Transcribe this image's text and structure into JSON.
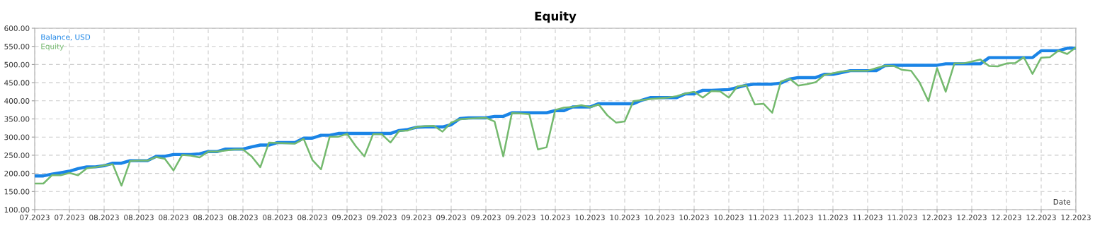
{
  "chart_data": {
    "type": "line",
    "title": "Equity",
    "xlabel": "Date",
    "categories": [
      "07.2023",
      null,
      null,
      null,
      "07.2023",
      null,
      null,
      null,
      "08.2023",
      null,
      null,
      null,
      "08.2023",
      null,
      null,
      null,
      "08.2023",
      null,
      null,
      null,
      "08.2023",
      null,
      null,
      null,
      "08.2023",
      null,
      null,
      null,
      "08.2023",
      null,
      null,
      null,
      "08.2023",
      null,
      null,
      null,
      "09.2023",
      null,
      null,
      null,
      "09.2023",
      null,
      null,
      null,
      "09.2023",
      null,
      null,
      null,
      "09.2023",
      null,
      null,
      null,
      "09.2023",
      null,
      null,
      null,
      "09.2023",
      null,
      null,
      null,
      "10.2023",
      null,
      null,
      null,
      "10.2023",
      null,
      null,
      null,
      "10.2023",
      null,
      null,
      null,
      "10.2023",
      null,
      null,
      null,
      "10.2023",
      null,
      null,
      null,
      "10.2023",
      null,
      null,
      null,
      "11.2023",
      null,
      null,
      null,
      "11.2023",
      null,
      null,
      null,
      "11.2023",
      null,
      null,
      null,
      "11.2023",
      null,
      null,
      null,
      "11.2023",
      null,
      null,
      null,
      "12.2023",
      null,
      null,
      null,
      "12.2023",
      null,
      null,
      null,
      "12.2023",
      null,
      null,
      null,
      "12.2023",
      null,
      null,
      null,
      "12.2023"
    ],
    "ylim": [
      100,
      600
    ],
    "yticks": [
      {
        "value": 100,
        "label": "100.00"
      },
      {
        "value": 150,
        "label": "150.00"
      },
      {
        "value": 200,
        "label": "200.00"
      },
      {
        "value": 250,
        "label": "250.00"
      },
      {
        "value": 300,
        "label": "300.00"
      },
      {
        "value": 350,
        "label": "350.00"
      },
      {
        "value": 400,
        "label": "400.00"
      },
      {
        "value": 450,
        "label": "450.00"
      },
      {
        "value": 500,
        "label": "500.00"
      },
      {
        "value": 550,
        "label": "550.00"
      },
      {
        "value": 600,
        "label": "600.00"
      }
    ],
    "grid": true,
    "legend": "top left",
    "marker": "none",
    "line_style": "solid",
    "series": [
      {
        "name": "Balance, USD",
        "color": "#1a84e6",
        "values": [
          193,
          193,
          198,
          202,
          206,
          213,
          218,
          218,
          221,
          228,
          228,
          235,
          235,
          235,
          247,
          247,
          252,
          252,
          252,
          254,
          260,
          260,
          267,
          267,
          267,
          273,
          278,
          278,
          285,
          285,
          285,
          297,
          297,
          305,
          305,
          310,
          310,
          310,
          310,
          310,
          310,
          310,
          318,
          321,
          327,
          328,
          328,
          328,
          334,
          351,
          353,
          353,
          353,
          357,
          357,
          367,
          367,
          367,
          367,
          367,
          373,
          373,
          383,
          383,
          383,
          392,
          392,
          392,
          392,
          392,
          402,
          409,
          409,
          409,
          409,
          419,
          419,
          429,
          429,
          430,
          431,
          437,
          443,
          446,
          446,
          446,
          449,
          460,
          464,
          464,
          464,
          473,
          473,
          478,
          483,
          483,
          483,
          483,
          497,
          498,
          498,
          498,
          498,
          498,
          498,
          502,
          502,
          502,
          502,
          502,
          519,
          519,
          519,
          519,
          519,
          519,
          538,
          538,
          538,
          545,
          545
        ]
      },
      {
        "name": "Equity",
        "color": "#74b96e",
        "values": [
          172,
          172,
          195,
          195,
          201,
          195,
          214,
          217,
          222,
          225,
          166,
          234,
          235,
          235,
          245,
          240,
          208,
          251,
          249,
          244,
          260,
          260,
          263,
          266,
          266,
          247,
          217,
          285,
          284,
          283,
          282,
          295,
          237,
          211,
          301,
          301,
          309,
          275,
          247,
          308,
          308,
          285,
          317,
          318,
          328,
          330,
          331,
          315,
          340,
          349,
          351,
          352,
          353,
          343,
          247,
          366,
          365,
          363,
          266,
          272,
          375,
          381,
          383,
          388,
          382,
          390,
          360,
          340,
          343,
          399,
          402,
          405,
          407,
          409,
          413,
          420,
          425,
          409,
          427,
          426,
          409,
          440,
          443,
          390,
          392,
          367,
          453,
          461,
          442,
          446,
          451,
          471,
          476,
          481,
          483,
          483,
          483,
          490,
          497,
          496,
          485,
          483,
          450,
          399,
          490,
          425,
          503,
          503,
          508,
          514,
          496,
          495,
          503,
          504,
          520,
          474,
          519,
          520,
          538,
          529,
          547
        ]
      }
    ]
  }
}
